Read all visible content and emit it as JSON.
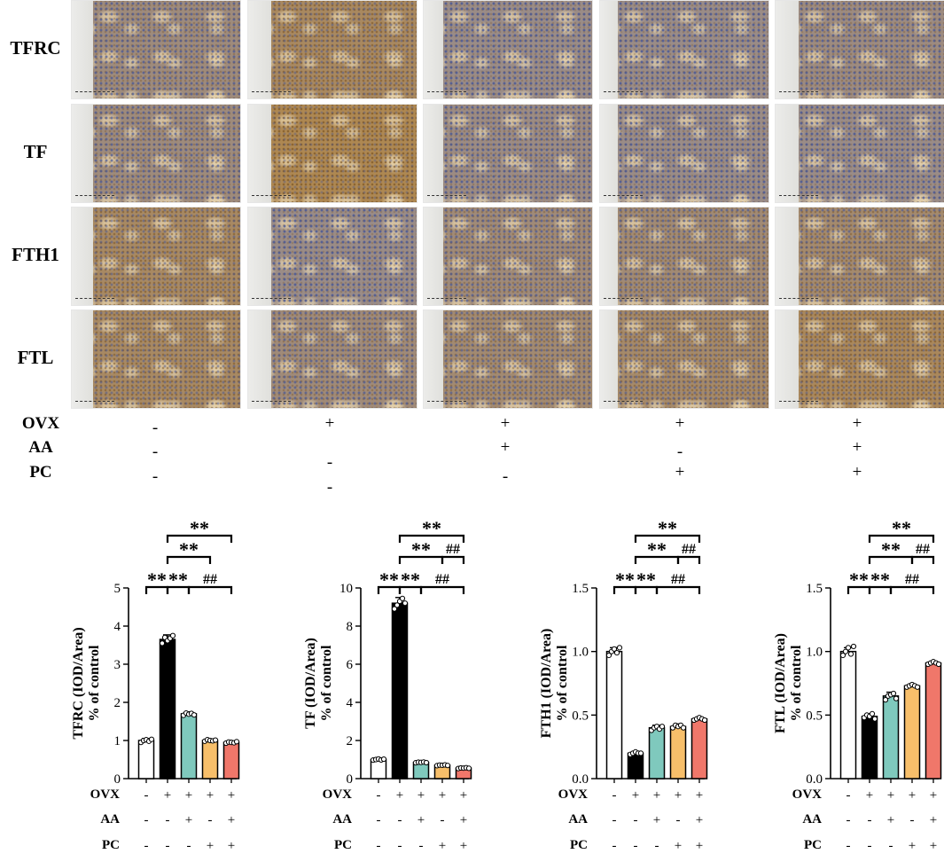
{
  "figure": {
    "markers": [
      "TFRC",
      "TF",
      "FTH1",
      "FTL"
    ],
    "treatments": [
      {
        "name": "OVX",
        "marks": [
          "-",
          "+",
          "+",
          "+",
          "+"
        ]
      },
      {
        "name": "AA",
        "marks": [
          "-",
          "-",
          "+",
          "-",
          "+"
        ]
      },
      {
        "name": "PC",
        "marks": [
          "-",
          "-",
          "-",
          "+",
          "+"
        ]
      }
    ],
    "colors": {
      "group_fill": [
        "#ffffff",
        "#000000",
        "#7fc9bd",
        "#f7bf6a",
        "#f0776a"
      ],
      "stain_brown": "#b6863c",
      "stain_blue": "#4a5a94"
    },
    "micrograph_dab_intensity": [
      [
        0.35,
        0.75,
        0.2,
        0.2,
        0.3
      ],
      [
        0.35,
        0.95,
        0.25,
        0.2,
        0.2
      ],
      [
        0.7,
        0.2,
        0.4,
        0.45,
        0.55
      ],
      [
        0.7,
        0.4,
        0.5,
        0.6,
        0.8
      ]
    ]
  },
  "chart_data": [
    {
      "type": "bar",
      "marker": "TFRC",
      "ylabel": "TFRC (IOD/Area)",
      "ylabel2": "% of control",
      "ylim": [
        0,
        5
      ],
      "yticks": [
        "0",
        "1",
        "2",
        "3",
        "4",
        "5"
      ],
      "values": [
        1.0,
        3.65,
        1.7,
        1.0,
        0.95
      ],
      "errors": [
        0.05,
        0.12,
        0.05,
        0.04,
        0.03
      ],
      "points": [
        [
          0.95,
          1.0,
          1.02,
          0.98,
          1.03
        ],
        [
          3.55,
          3.7,
          3.62,
          3.68,
          3.75
        ],
        [
          1.66,
          1.72,
          1.69,
          1.71,
          1.67
        ],
        [
          0.98,
          1.02,
          1.0,
          0.99,
          1.01
        ],
        [
          0.93,
          0.96,
          0.95,
          0.94,
          0.97
        ]
      ],
      "annotations": [
        {
          "text": "**",
          "from": 0,
          "to": 1,
          "level": 0
        },
        {
          "text": "**",
          "from": 1,
          "to": 2,
          "level": 0
        },
        {
          "text": "##",
          "from": 2,
          "to": 4,
          "level": 0
        },
        {
          "text": "**",
          "from": 1,
          "to": 3,
          "level": 1
        },
        {
          "text": "**",
          "from": 1,
          "to": 4,
          "level": 2
        }
      ]
    },
    {
      "type": "bar",
      "marker": "TF",
      "ylabel": "TF (IOD/Area)",
      "ylabel2": "% of control",
      "ylim": [
        0,
        10
      ],
      "yticks": [
        "0",
        "2",
        "4",
        "6",
        "8",
        "10"
      ],
      "values": [
        1.0,
        9.2,
        0.85,
        0.7,
        0.55
      ],
      "errors": [
        0.04,
        0.3,
        0.03,
        0.03,
        0.03
      ],
      "points": [
        [
          0.97,
          1.0,
          1.03,
          0.98,
          1.02
        ],
        [
          8.9,
          9.1,
          9.3,
          9.45,
          9.2
        ],
        [
          0.83,
          0.86,
          0.85,
          0.87,
          0.84
        ],
        [
          0.68,
          0.71,
          0.7,
          0.72,
          0.69
        ],
        [
          0.53,
          0.56,
          0.55,
          0.57,
          0.54
        ]
      ],
      "annotations": [
        {
          "text": "**",
          "from": 0,
          "to": 1,
          "level": 0
        },
        {
          "text": "**",
          "from": 1,
          "to": 2,
          "level": 0
        },
        {
          "text": "##",
          "from": 2,
          "to": 4,
          "level": 0
        },
        {
          "text": "**",
          "from": 1,
          "to": 3,
          "level": 1
        },
        {
          "text": "##",
          "from": 3,
          "to": 4,
          "level": 1
        },
        {
          "text": "**",
          "from": 1,
          "to": 4,
          "level": 2
        }
      ]
    },
    {
      "type": "bar",
      "marker": "FTH1",
      "ylabel": "FTH1 (IOD/Area)",
      "ylabel2": "% of control",
      "ylim": [
        0,
        1.5
      ],
      "yticks": [
        "0.0",
        "0.5",
        "1.0",
        "1.5"
      ],
      "values": [
        1.0,
        0.2,
        0.4,
        0.41,
        0.47
      ],
      "errors": [
        0.03,
        0.01,
        0.02,
        0.02,
        0.01
      ],
      "points": [
        [
          0.97,
          1.0,
          1.02,
          0.99,
          1.03
        ],
        [
          0.19,
          0.2,
          0.21,
          0.2,
          0.2
        ],
        [
          0.38,
          0.4,
          0.41,
          0.39,
          0.41
        ],
        [
          0.4,
          0.42,
          0.41,
          0.42,
          0.4
        ],
        [
          0.46,
          0.47,
          0.48,
          0.47,
          0.46
        ]
      ],
      "annotations": [
        {
          "text": "**",
          "from": 0,
          "to": 1,
          "level": 0
        },
        {
          "text": "**",
          "from": 1,
          "to": 2,
          "level": 0
        },
        {
          "text": "##",
          "from": 2,
          "to": 4,
          "level": 0
        },
        {
          "text": "**",
          "from": 1,
          "to": 3,
          "level": 1
        },
        {
          "text": "##",
          "from": 3,
          "to": 4,
          "level": 1
        },
        {
          "text": "**",
          "from": 1,
          "to": 4,
          "level": 2
        }
      ]
    },
    {
      "type": "bar",
      "marker": "FTL",
      "ylabel": "FTL (IOD/Area)",
      "ylabel2": "% of control",
      "ylim": [
        0,
        1.5
      ],
      "yticks": [
        "0.0",
        "0.5",
        "1.0",
        "1.5"
      ],
      "values": [
        1.0,
        0.49,
        0.65,
        0.73,
        0.91
      ],
      "errors": [
        0.03,
        0.02,
        0.03,
        0.01,
        0.01
      ],
      "points": [
        [
          0.97,
          1.0,
          1.03,
          0.98,
          1.04
        ],
        [
          0.48,
          0.5,
          0.49,
          0.51,
          0.47
        ],
        [
          0.62,
          0.65,
          0.66,
          0.67,
          0.63
        ],
        [
          0.72,
          0.73,
          0.74,
          0.73,
          0.72
        ],
        [
          0.9,
          0.91,
          0.92,
          0.91,
          0.9
        ]
      ],
      "annotations": [
        {
          "text": "**",
          "from": 0,
          "to": 1,
          "level": 0
        },
        {
          "text": "**",
          "from": 1,
          "to": 2,
          "level": 0
        },
        {
          "text": "##",
          "from": 2,
          "to": 4,
          "level": 0
        },
        {
          "text": "**",
          "from": 1,
          "to": 3,
          "level": 1
        },
        {
          "text": "##",
          "from": 3,
          "to": 4,
          "level": 1
        },
        {
          "text": "**",
          "from": 1,
          "to": 4,
          "level": 2
        }
      ]
    }
  ]
}
